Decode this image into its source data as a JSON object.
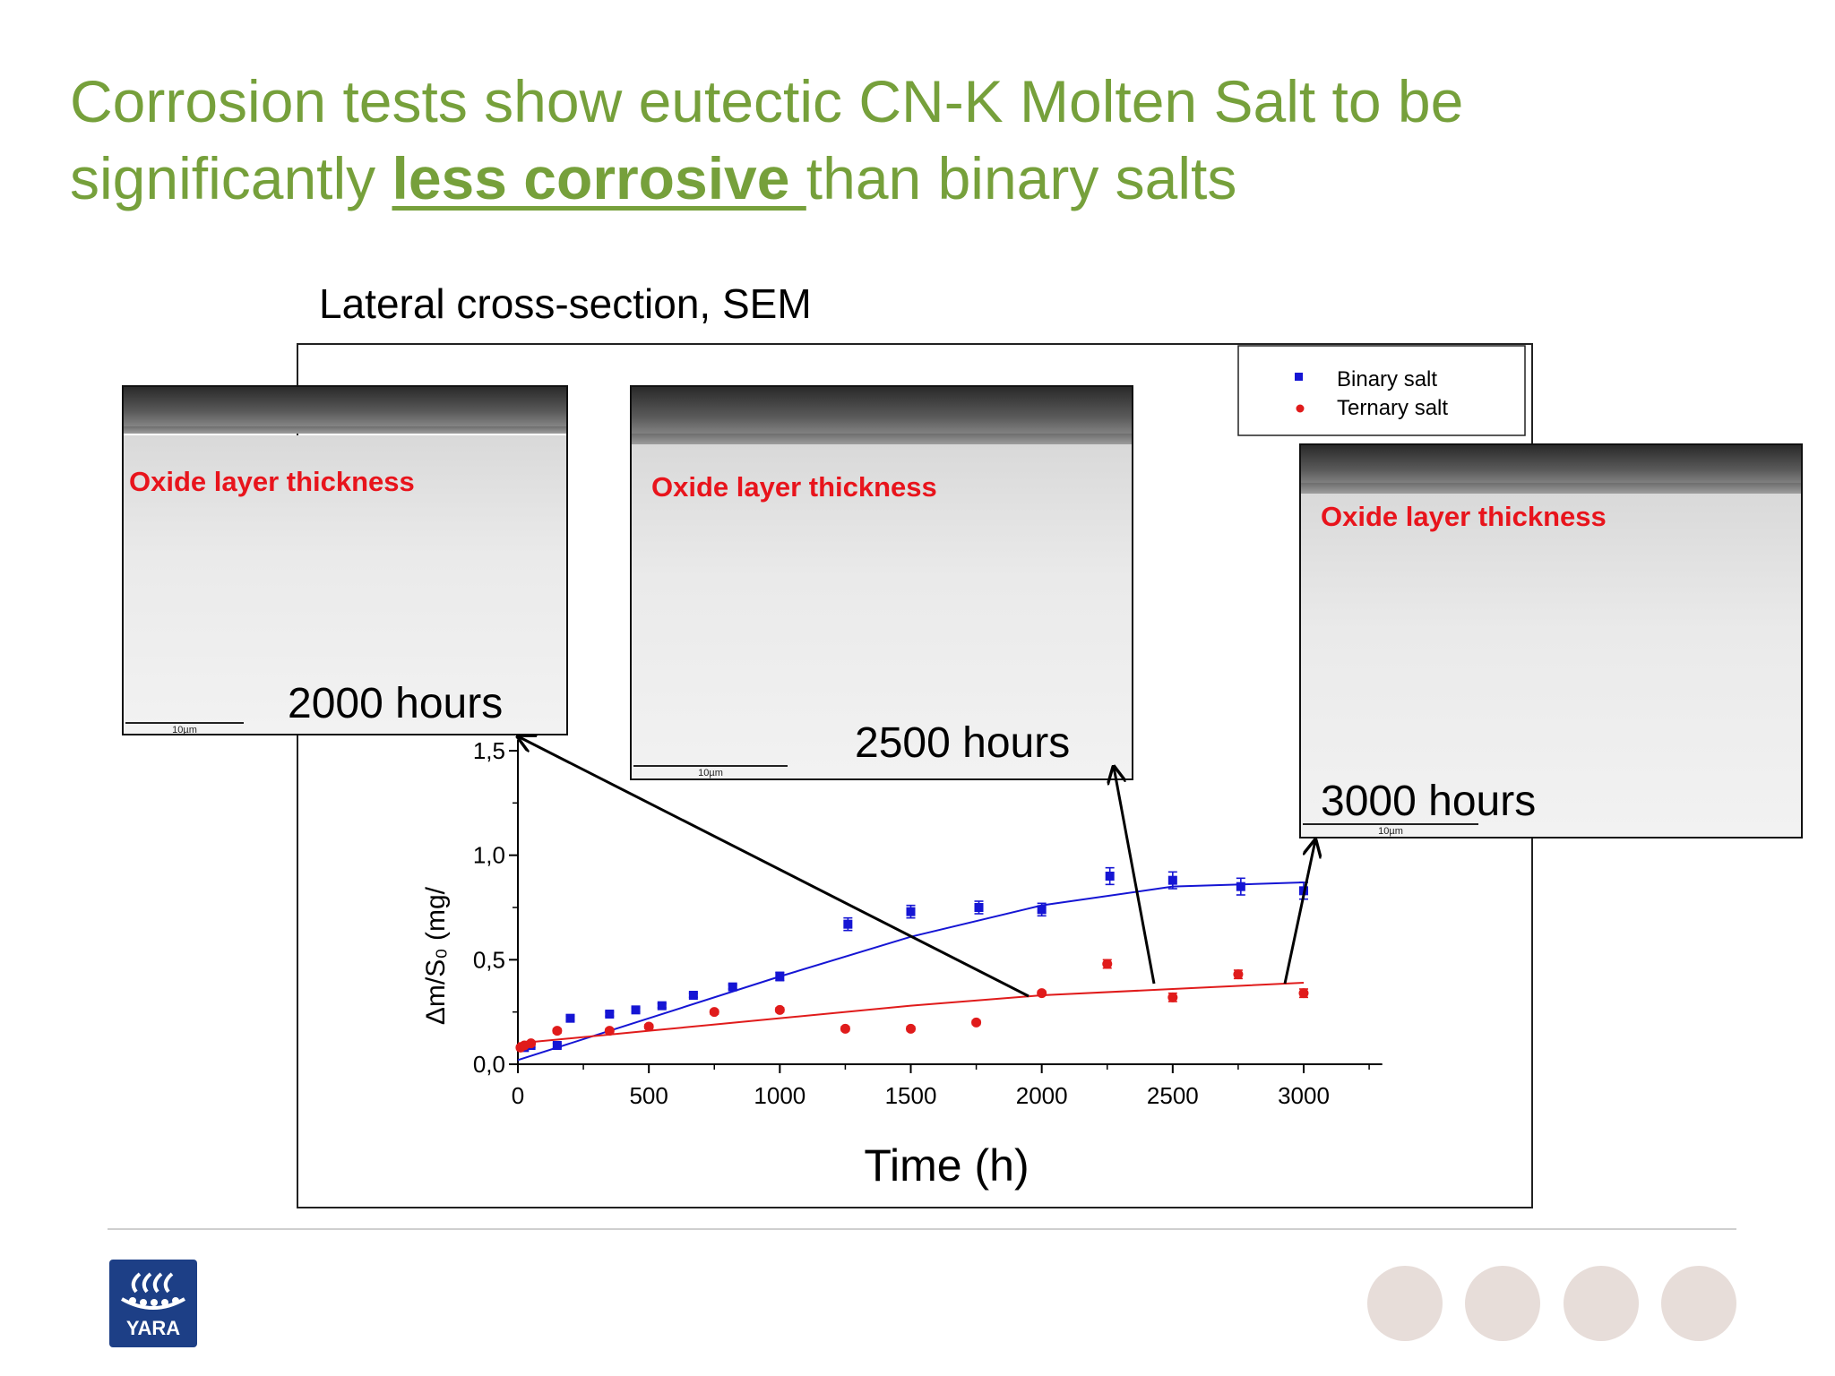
{
  "title": {
    "part1": "Corrosion tests show eutectic CN-K Molten Salt to be significantly ",
    "emphasis": "less corrosive ",
    "part2": "than binary salts"
  },
  "subtitle": "Lateral cross-section, SEM",
  "sem_images": [
    {
      "caption": "Oxide layer thickness",
      "hours": "2000 hours",
      "scale": "10µm"
    },
    {
      "caption": "Oxide layer thickness",
      "hours": "2500 hours",
      "scale": "10µm"
    },
    {
      "caption": "Oxide layer thickness",
      "hours": "3000 hours",
      "scale": "10µm"
    }
  ],
  "logo_text": "YARA",
  "colors": {
    "title": "#76a03b",
    "binary": "#1515d4",
    "ternary": "#e01b1b",
    "caption": "#e8141c"
  },
  "chart_data": {
    "type": "scatter",
    "xlabel": "Time (h)",
    "ylabel": "Δm/S₀ (mg/",
    "xlim": [
      0,
      3300
    ],
    "ylim": [
      0,
      1.5
    ],
    "xticks": [
      "0",
      "500",
      "1000",
      "1500",
      "2000",
      "2500",
      "3000"
    ],
    "xtick_values": [
      0,
      500,
      1000,
      1500,
      2000,
      2500,
      3000
    ],
    "yticks": [
      "0,0",
      "0,5",
      "1,0",
      "1,5"
    ],
    "ytick_values": [
      0,
      0.5,
      1.0,
      1.5
    ],
    "legend_position": "top-right",
    "series": [
      {
        "name": "Binary salt",
        "marker": "square",
        "color": "#1515d4",
        "x": [
          25,
          50,
          150,
          200,
          350,
          450,
          550,
          670,
          820,
          1000,
          1260,
          1500,
          1760,
          2000,
          2260,
          2500,
          2760,
          3000
        ],
        "y": [
          0.08,
          0.09,
          0.09,
          0.22,
          0.24,
          0.26,
          0.28,
          0.33,
          0.37,
          0.42,
          0.67,
          0.73,
          0.75,
          0.74,
          0.9,
          0.88,
          0.85,
          0.83
        ],
        "err": [
          0.01,
          0.01,
          0.01,
          0.01,
          0.01,
          0.01,
          0.01,
          0.01,
          0.01,
          0.02,
          0.03,
          0.03,
          0.03,
          0.03,
          0.04,
          0.04,
          0.04,
          0.04
        ],
        "fit": {
          "x": [
            0,
            500,
            1000,
            1500,
            2000,
            2500,
            3000
          ],
          "y": [
            0.02,
            0.22,
            0.42,
            0.61,
            0.76,
            0.85,
            0.87
          ]
        }
      },
      {
        "name": "Ternary salt",
        "marker": "circle",
        "color": "#e01b1b",
        "x": [
          10,
          25,
          50,
          150,
          350,
          500,
          750,
          1000,
          1250,
          1500,
          1750,
          2000,
          2250,
          2500,
          2750,
          3000
        ],
        "y": [
          0.08,
          0.09,
          0.1,
          0.16,
          0.16,
          0.18,
          0.25,
          0.26,
          0.17,
          0.17,
          0.2,
          0.34,
          0.48,
          0.32,
          0.43,
          0.34
        ],
        "err": [
          0.01,
          0.01,
          0.01,
          0.01,
          0.01,
          0.01,
          0.01,
          0.01,
          0.01,
          0.01,
          0.01,
          0.01,
          0.02,
          0.02,
          0.02,
          0.02
        ],
        "fit": {
          "x": [
            0,
            500,
            1000,
            1500,
            2000,
            2500,
            3000
          ],
          "y": [
            0.1,
            0.16,
            0.22,
            0.28,
            0.33,
            0.36,
            0.39
          ]
        }
      }
    ]
  }
}
